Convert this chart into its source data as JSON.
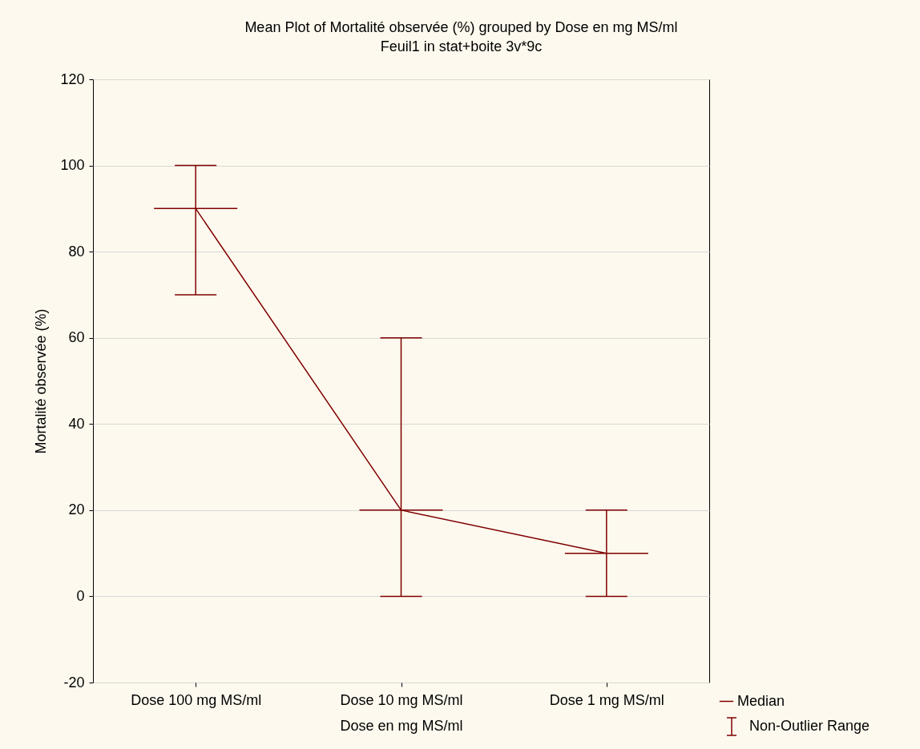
{
  "chart_data": {
    "type": "line",
    "title": "Mean Plot of Mortalité observée (%) grouped by  Dose en mg MS/ml",
    "subtitle": "Feuil1 in stat+boite 3v*9c",
    "xlabel": "Dose en mg MS/ml",
    "ylabel": "Mortalité observée (%)",
    "categories": [
      "Dose 100 mg MS/ml",
      "Dose 10 mg MS/ml",
      "Dose 1 mg MS/ml"
    ],
    "series": [
      {
        "name": "Median",
        "color": "#800000",
        "values": [
          90,
          20,
          10
        ],
        "errors": [
          [
            70,
            100
          ],
          [
            0,
            60
          ],
          [
            0,
            20
          ]
        ]
      }
    ],
    "ylim": [
      -20,
      120
    ],
    "yticks": [
      -20,
      0,
      20,
      40,
      60,
      80,
      100,
      120
    ],
    "grid": "y",
    "legend": "bottom right",
    "annotations": [
      "Non-Outlier Range"
    ]
  }
}
